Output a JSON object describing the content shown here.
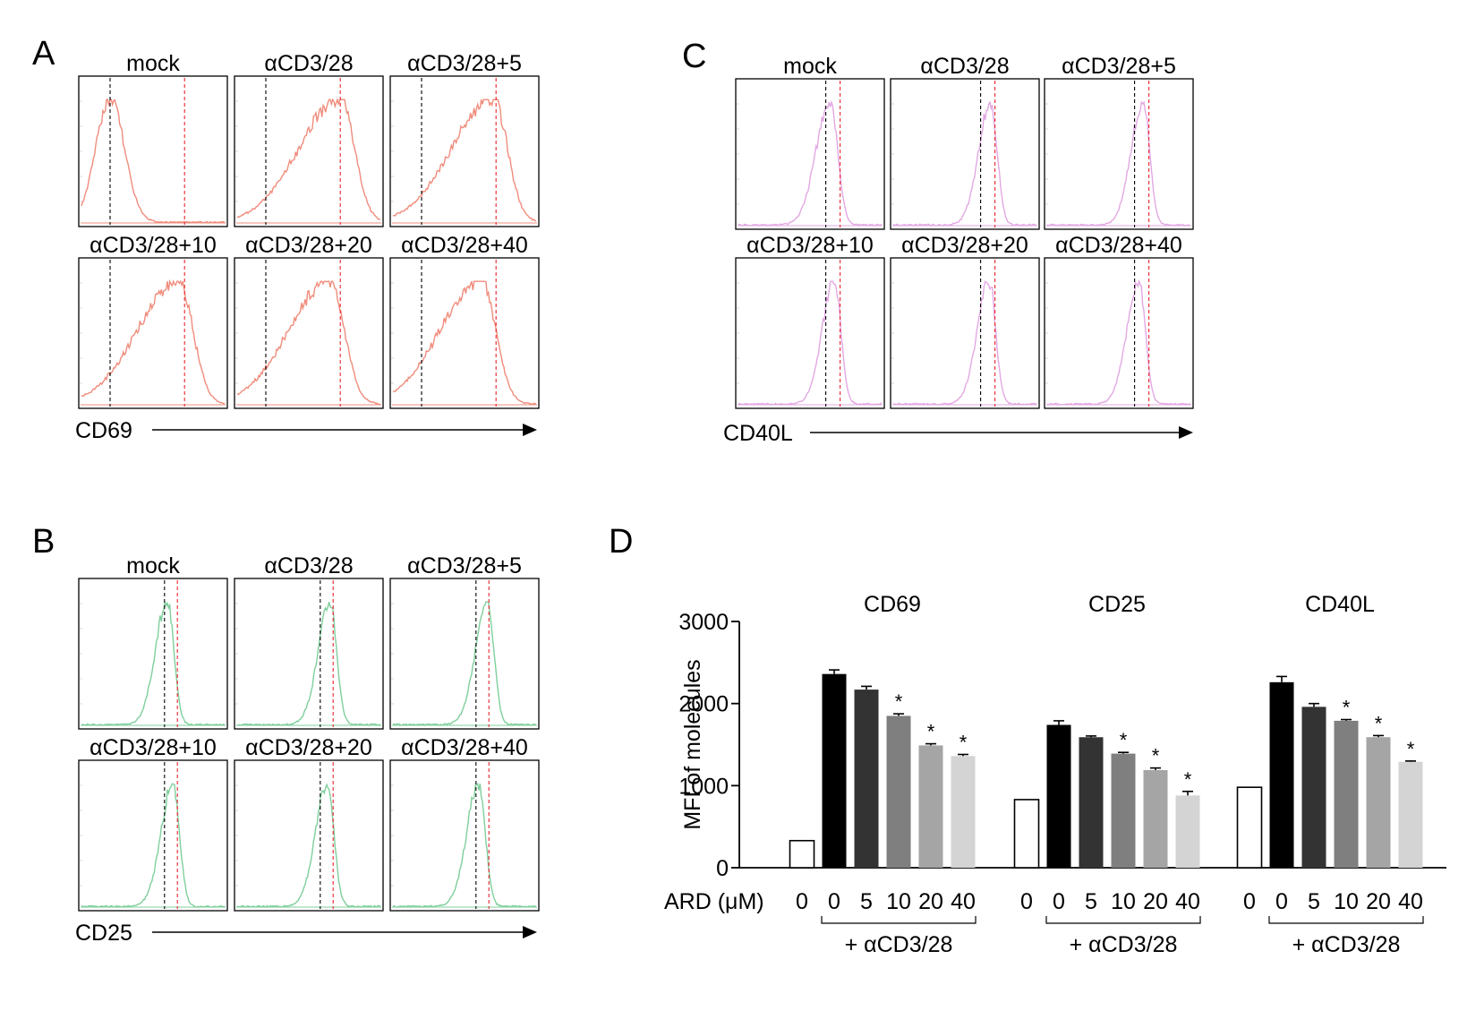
{
  "panels": {
    "A": {
      "letter": "A",
      "marker": "CD69",
      "color": "#f08c7c",
      "titles": [
        "mock",
        "αCD3/28",
        "αCD3/28+5",
        "αCD3/28+10",
        "αCD3/28+20",
        "αCD3/28+40"
      ]
    },
    "B": {
      "letter": "B",
      "marker": "CD25",
      "color": "#7fcf9c",
      "titles": [
        "mock",
        "αCD3/28",
        "αCD3/28+5",
        "αCD3/28+10",
        "αCD3/28+20",
        "αCD3/28+40"
      ]
    },
    "C": {
      "letter": "C",
      "marker": "CD40L",
      "color": "#e3a8e3",
      "titles": [
        "mock",
        "αCD3/28",
        "αCD3/28+5",
        "αCD3/28+10",
        "αCD3/28+20",
        "αCD3/28+40"
      ]
    }
  },
  "chart_data": [
    {
      "panel": "A",
      "type": "area",
      "xlabel": "CD69",
      "series": [
        {
          "name": "mock",
          "peak": 0.2,
          "spread": 0.1,
          "profile": "symmetric"
        },
        {
          "name": "αCD3/28",
          "peak": 0.72,
          "spread": 0.18,
          "profile": "left-skewed"
        },
        {
          "name": "αCD3/28+5",
          "peak": 0.7,
          "spread": 0.18,
          "profile": "left-skewed"
        },
        {
          "name": "αCD3/28+10",
          "peak": 0.68,
          "spread": 0.18,
          "profile": "left-skewed"
        },
        {
          "name": "αCD3/28+20",
          "peak": 0.65,
          "spread": 0.18,
          "profile": "left-skewed"
        },
        {
          "name": "αCD3/28+40",
          "peak": 0.62,
          "spread": 0.18,
          "profile": "left-skewed"
        }
      ],
      "reference_lines": {
        "mock_median": 0.2,
        "stimulated_median": 0.72
      }
    },
    {
      "panel": "B",
      "type": "area",
      "xlabel": "CD25",
      "series": [
        {
          "name": "mock",
          "peak": 0.6,
          "spread": 0.06,
          "profile": "narrow"
        },
        {
          "name": "αCD3/28",
          "peak": 0.65,
          "spread": 0.06,
          "profile": "narrow"
        },
        {
          "name": "αCD3/28+5",
          "peak": 0.66,
          "spread": 0.06,
          "profile": "narrow"
        },
        {
          "name": "αCD3/28+10",
          "peak": 0.64,
          "spread": 0.06,
          "profile": "narrow"
        },
        {
          "name": "αCD3/28+20",
          "peak": 0.63,
          "spread": 0.06,
          "profile": "narrow"
        },
        {
          "name": "αCD3/28+40",
          "peak": 0.6,
          "spread": 0.06,
          "profile": "narrow"
        }
      ],
      "reference_lines": {
        "mock_median": 0.58,
        "stimulated_median": 0.67
      }
    },
    {
      "panel": "C",
      "type": "area",
      "xlabel": "CD40L",
      "series": [
        {
          "name": "mock",
          "peak": 0.64,
          "spread": 0.07,
          "profile": "narrow"
        },
        {
          "name": "αCD3/28",
          "peak": 0.68,
          "spread": 0.06,
          "profile": "narrow"
        },
        {
          "name": "αCD3/28+5",
          "peak": 0.67,
          "spread": 0.06,
          "profile": "narrow"
        },
        {
          "name": "αCD3/28+10",
          "peak": 0.67,
          "spread": 0.06,
          "profile": "narrow"
        },
        {
          "name": "αCD3/28+20",
          "peak": 0.67,
          "spread": 0.06,
          "profile": "narrow"
        },
        {
          "name": "αCD3/28+40",
          "peak": 0.64,
          "spread": 0.06,
          "profile": "narrow"
        }
      ],
      "reference_lines": {
        "mock_median": 0.61,
        "stimulated_median": 0.71
      }
    },
    {
      "panel": "D",
      "type": "bar",
      "ylabel": "MFI of molecules",
      "ylim": [
        0,
        3000
      ],
      "yticks": [
        0,
        1000,
        2000,
        3000
      ],
      "xaxis_title": "ARD (μM)",
      "bracket_label": "+ αCD3/28",
      "categories": [
        "0",
        "0",
        "5",
        "10",
        "20",
        "40"
      ],
      "bar_colors": [
        "#ffffff",
        "#000000",
        "#333333",
        "#7f7f7f",
        "#a5a5a5",
        "#d4d4d4"
      ],
      "groups": [
        {
          "name": "CD69",
          "values": [
            330,
            2360,
            2170,
            1850,
            1490,
            1360
          ],
          "errors": [
            0,
            50,
            40,
            25,
            20,
            20
          ],
          "significant": [
            false,
            false,
            false,
            true,
            true,
            true
          ]
        },
        {
          "name": "CD25",
          "values": [
            830,
            1740,
            1590,
            1390,
            1190,
            880
          ],
          "errors": [
            0,
            50,
            15,
            15,
            25,
            50
          ],
          "significant": [
            false,
            false,
            false,
            true,
            true,
            true
          ]
        },
        {
          "name": "CD40L",
          "values": [
            980,
            2260,
            1960,
            1790,
            1590,
            1290
          ],
          "errors": [
            0,
            70,
            40,
            15,
            20,
            10
          ],
          "significant": [
            false,
            false,
            false,
            true,
            true,
            true
          ]
        }
      ],
      "significance_mark": "*"
    }
  ]
}
